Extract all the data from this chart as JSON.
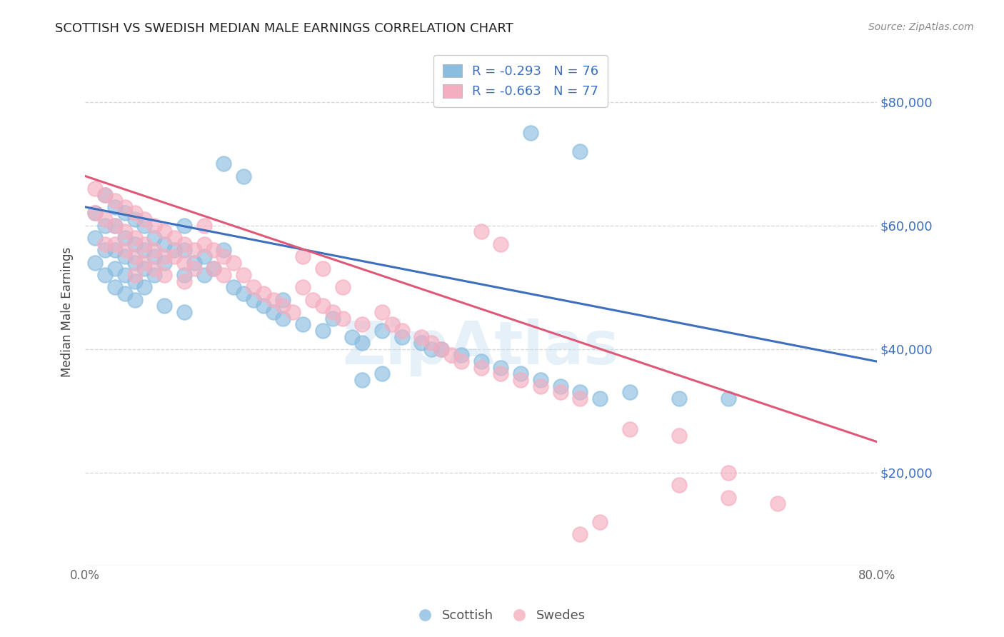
{
  "title": "SCOTTISH VS SWEDISH MEDIAN MALE EARNINGS CORRELATION CHART",
  "source": "Source: ZipAtlas.com",
  "ylabel": "Median Male Earnings",
  "xlim": [
    0.0,
    0.8
  ],
  "ylim": [
    5000,
    87000
  ],
  "yticks": [
    20000,
    40000,
    60000,
    80000
  ],
  "ytick_labels": [
    "$20,000",
    "$40,000",
    "$60,000",
    "$80,000"
  ],
  "xticks": [
    0.0,
    0.1,
    0.2,
    0.3,
    0.4,
    0.5,
    0.6,
    0.7,
    0.8
  ],
  "xtick_labels": [
    "0.0%",
    "",
    "",
    "",
    "",
    "",
    "",
    "",
    "80.0%"
  ],
  "scottish_color": "#8bbde0",
  "swedes_color": "#f5aec0",
  "scottish_line_color": "#3d6fbf",
  "swedes_line_color": "#e05878",
  "R_scottish": -0.293,
  "N_scottish": 76,
  "R_swedes": -0.663,
  "N_swedes": 77,
  "watermark": "ZipAtlas",
  "background_color": "#ffffff",
  "legend_label_scottish": "Scottish",
  "legend_label_swedes": "Swedes",
  "scottish_line_x0": 0.0,
  "scottish_line_y0": 63000,
  "scottish_line_x1": 0.8,
  "scottish_line_y1": 38000,
  "swedes_line_x0": 0.0,
  "swedes_line_y0": 68000,
  "swedes_line_x1": 0.8,
  "swedes_line_y1": 25000,
  "scottish_x": [
    0.01,
    0.01,
    0.01,
    0.02,
    0.02,
    0.02,
    0.02,
    0.03,
    0.03,
    0.03,
    0.03,
    0.03,
    0.04,
    0.04,
    0.04,
    0.04,
    0.04,
    0.05,
    0.05,
    0.05,
    0.05,
    0.05,
    0.06,
    0.06,
    0.06,
    0.06,
    0.07,
    0.07,
    0.07,
    0.08,
    0.08,
    0.09,
    0.1,
    0.1,
    0.1,
    0.11,
    0.12,
    0.12,
    0.13,
    0.14,
    0.15,
    0.16,
    0.17,
    0.18,
    0.19,
    0.2,
    0.22,
    0.24,
    0.25,
    0.27,
    0.28,
    0.3,
    0.32,
    0.34,
    0.35,
    0.36,
    0.38,
    0.4,
    0.42,
    0.44,
    0.46,
    0.48,
    0.5,
    0.52,
    0.55,
    0.6,
    0.65,
    0.45,
    0.5,
    0.3,
    0.28,
    0.14,
    0.16,
    0.2,
    0.08,
    0.1
  ],
  "scottish_y": [
    62000,
    58000,
    54000,
    65000,
    60000,
    56000,
    52000,
    63000,
    60000,
    56000,
    53000,
    50000,
    62000,
    58000,
    55000,
    52000,
    49000,
    61000,
    57000,
    54000,
    51000,
    48000,
    60000,
    56000,
    53000,
    50000,
    58000,
    55000,
    52000,
    57000,
    54000,
    56000,
    60000,
    56000,
    52000,
    54000,
    55000,
    52000,
    53000,
    56000,
    50000,
    49000,
    48000,
    47000,
    46000,
    45000,
    44000,
    43000,
    45000,
    42000,
    41000,
    43000,
    42000,
    41000,
    40000,
    40000,
    39000,
    38000,
    37000,
    36000,
    35000,
    34000,
    33000,
    32000,
    33000,
    32000,
    32000,
    75000,
    72000,
    36000,
    35000,
    70000,
    68000,
    48000,
    47000,
    46000
  ],
  "swedes_x": [
    0.01,
    0.01,
    0.02,
    0.02,
    0.02,
    0.03,
    0.03,
    0.03,
    0.04,
    0.04,
    0.04,
    0.05,
    0.05,
    0.05,
    0.05,
    0.06,
    0.06,
    0.06,
    0.07,
    0.07,
    0.07,
    0.08,
    0.08,
    0.08,
    0.09,
    0.09,
    0.1,
    0.1,
    0.1,
    0.11,
    0.11,
    0.12,
    0.12,
    0.13,
    0.13,
    0.14,
    0.14,
    0.15,
    0.16,
    0.17,
    0.18,
    0.19,
    0.2,
    0.21,
    0.22,
    0.23,
    0.24,
    0.25,
    0.26,
    0.28,
    0.3,
    0.31,
    0.32,
    0.34,
    0.35,
    0.36,
    0.37,
    0.38,
    0.4,
    0.42,
    0.44,
    0.46,
    0.48,
    0.5,
    0.55,
    0.6,
    0.65,
    0.4,
    0.42,
    0.22,
    0.24,
    0.26,
    0.5,
    0.52,
    0.6,
    0.65,
    0.7
  ],
  "swedes_y": [
    66000,
    62000,
    65000,
    61000,
    57000,
    64000,
    60000,
    57000,
    63000,
    59000,
    56000,
    62000,
    58000,
    55000,
    52000,
    61000,
    57000,
    54000,
    60000,
    56000,
    53000,
    59000,
    55000,
    52000,
    58000,
    55000,
    57000,
    54000,
    51000,
    56000,
    53000,
    60000,
    57000,
    56000,
    53000,
    55000,
    52000,
    54000,
    52000,
    50000,
    49000,
    48000,
    47000,
    46000,
    50000,
    48000,
    47000,
    46000,
    45000,
    44000,
    46000,
    44000,
    43000,
    42000,
    41000,
    40000,
    39000,
    38000,
    37000,
    36000,
    35000,
    34000,
    33000,
    32000,
    27000,
    26000,
    20000,
    59000,
    57000,
    55000,
    53000,
    50000,
    10000,
    12000,
    18000,
    16000,
    15000
  ]
}
